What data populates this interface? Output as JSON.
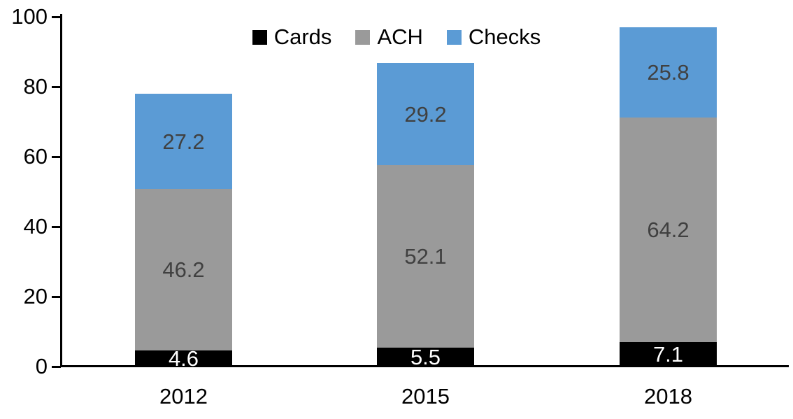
{
  "chart_data": {
    "type": "bar",
    "stacked": true,
    "title": "",
    "xlabel": "",
    "ylabel": "",
    "categories": [
      "2012",
      "2015",
      "2018"
    ],
    "series": [
      {
        "name": "Cards",
        "color": "#000000",
        "label_color": "#ffffff",
        "values": [
          4.6,
          5.5,
          7.1
        ]
      },
      {
        "name": "ACH",
        "color": "#9a9a9a",
        "label_color": "#404040",
        "values": [
          46.2,
          52.1,
          64.2
        ]
      },
      {
        "name": "Checks",
        "color": "#5b9bd5",
        "label_color": "#404040",
        "values": [
          27.2,
          29.2,
          25.8
        ]
      }
    ],
    "yticks": [
      0,
      20,
      40,
      60,
      80,
      100
    ],
    "ylim": [
      0,
      100
    ],
    "legend_position": "top",
    "grid": false,
    "axis_color": "#000000",
    "background": "#ffffff",
    "value_decimals": 1
  }
}
